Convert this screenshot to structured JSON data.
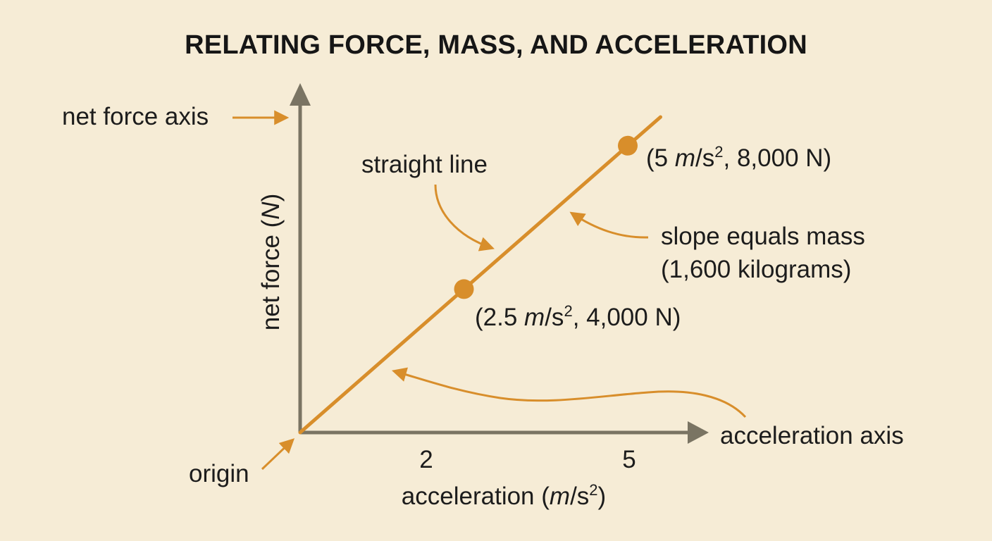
{
  "colors": {
    "background": "#f6ecd6",
    "axis": "#7a7463",
    "line": "#d88e2b",
    "point": "#d88e2b",
    "arrow": "#d88e2b",
    "text": "#1c1c1c"
  },
  "chart_data": {
    "type": "line",
    "title": "RELATING FORCE, MASS, AND ACCELERATION",
    "xlabel": "acceleration (m/s²)",
    "ylabel": "net force (N)",
    "x_ticks": [
      "2",
      "5"
    ],
    "xlim": [
      0,
      5.5
    ],
    "ylim": [
      0,
      8800
    ],
    "grid": false,
    "series": [
      {
        "x": [
          0,
          2.5,
          5,
          5.5
        ],
        "y": [
          0,
          4000,
          8000,
          8800
        ]
      }
    ],
    "points": [
      {
        "x": 2.5,
        "y": 4000,
        "label": "(2.5 m/s², 4,000 N)",
        "label_parts": [
          "(2.5 ",
          "m",
          "/s",
          "2",
          ", 4,000 N)"
        ]
      },
      {
        "x": 5,
        "y": 8000,
        "label": "(5 m/s², 8,000 N)",
        "label_parts": [
          "(5 ",
          "m",
          "/s",
          "2",
          ", 8,000 N)"
        ]
      }
    ],
    "annotations": {
      "net_force_axis": "net force axis",
      "straight_line": "straight line",
      "slope_line1": "slope equals mass",
      "slope_line2": "(1,600 kilograms)",
      "acceleration_axis": "acceleration axis",
      "origin": "origin"
    },
    "xlabel_parts": [
      "acceleration (",
      "m",
      "/s",
      "2",
      ")"
    ],
    "ylabel_parts": [
      "net force (",
      "N",
      ")"
    ]
  }
}
